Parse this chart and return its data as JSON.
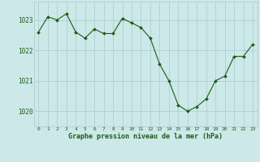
{
  "x": [
    0,
    1,
    2,
    3,
    4,
    5,
    6,
    7,
    8,
    9,
    10,
    11,
    12,
    13,
    14,
    15,
    16,
    17,
    18,
    19,
    20,
    21,
    22,
    23
  ],
  "y": [
    1022.6,
    1023.1,
    1023.0,
    1023.2,
    1022.6,
    1022.4,
    1022.7,
    1022.55,
    1022.55,
    1023.05,
    1022.9,
    1022.75,
    1022.4,
    1021.55,
    1021.0,
    1020.2,
    1020.0,
    1020.15,
    1020.4,
    1021.0,
    1021.15,
    1021.8,
    1021.8,
    1022.2
  ],
  "line_color": "#1a5c1a",
  "marker_color": "#1a5c1a",
  "background_color": "#cce8e8",
  "grid_color": "#aacccc",
  "xlabel": "Graphe pression niveau de la mer (hPa)",
  "xlabel_color": "#1a5c1a",
  "tick_color": "#1a5c1a",
  "ylim": [
    1019.5,
    1023.6
  ],
  "yticks": [
    1020,
    1021,
    1022,
    1023
  ],
  "xticks": [
    0,
    1,
    2,
    3,
    4,
    5,
    6,
    7,
    8,
    9,
    10,
    11,
    12,
    13,
    14,
    15,
    16,
    17,
    18,
    19,
    20,
    21,
    22,
    23
  ],
  "xtick_labels": [
    "0",
    "1",
    "2",
    "3",
    "4",
    "5",
    "6",
    "7",
    "8",
    "9",
    "10",
    "11",
    "12",
    "13",
    "14",
    "15",
    "16",
    "17",
    "18",
    "19",
    "20",
    "21",
    "22",
    "23"
  ]
}
